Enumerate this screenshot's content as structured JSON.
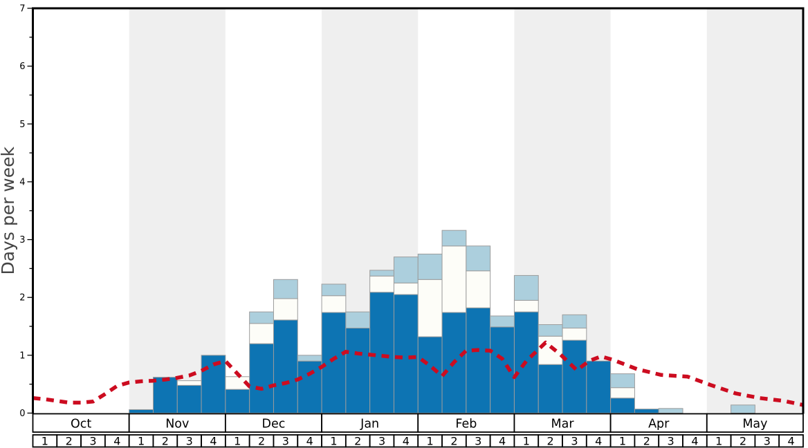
{
  "chart_data": {
    "type": "bar",
    "subtype": "stacked-bars-with-dashed-line-overlay",
    "title": "",
    "ylabel": "Days per week",
    "xlabel": "",
    "ylim": [
      0,
      7
    ],
    "y_major_ticks": [
      "0",
      "1",
      "2",
      "3",
      "4",
      "5",
      "6",
      "7"
    ],
    "y_minor_step": 0.5,
    "grid": "off",
    "legend": "none",
    "months": [
      "Oct",
      "Nov",
      "Dec",
      "Jan",
      "Feb",
      "Mar",
      "Apr",
      "May"
    ],
    "weeks_per_month": 4,
    "week_labels": [
      "1",
      "2",
      "3",
      "4"
    ],
    "shaded_months": [
      "Nov",
      "Jan",
      "Mar",
      "May"
    ],
    "categories": [
      "Oct-1",
      "Oct-2",
      "Oct-3",
      "Oct-4",
      "Nov-1",
      "Nov-2",
      "Nov-3",
      "Nov-4",
      "Dec-1",
      "Dec-2",
      "Dec-3",
      "Dec-4",
      "Jan-1",
      "Jan-2",
      "Jan-3",
      "Jan-4",
      "Feb-1",
      "Feb-2",
      "Feb-3",
      "Feb-4",
      "Mar-1",
      "Mar-2",
      "Mar-3",
      "Mar-4",
      "Apr-1",
      "Apr-2",
      "Apr-3",
      "Apr-4",
      "May-1",
      "May-2",
      "May-3",
      "May-4"
    ],
    "series": [
      {
        "name": "dark-blue-segment",
        "color": "#0d74b3",
        "values": [
          0,
          0,
          0,
          0,
          0.06,
          0.62,
          0.48,
          1.0,
          0.41,
          1.2,
          1.61,
          0.9,
          1.74,
          1.47,
          2.09,
          2.05,
          1.32,
          1.74,
          1.82,
          1.49,
          1.75,
          0.84,
          1.26,
          0.9,
          0.26,
          0.07,
          0,
          0,
          0,
          0,
          0,
          0
        ]
      },
      {
        "name": "white-segment",
        "color": "#fdfdf8",
        "values": [
          0,
          0,
          0,
          0,
          0,
          0,
          0.08,
          0,
          0.22,
          0.35,
          0.37,
          0,
          0.29,
          0,
          0.28,
          0.2,
          0.99,
          1.15,
          0.64,
          0,
          0.2,
          0.49,
          0.21,
          0,
          0.18,
          0,
          0,
          0,
          0,
          0,
          0,
          0
        ]
      },
      {
        "name": "light-blue-segment",
        "color": "#accfdd",
        "values": [
          0,
          0,
          0,
          0,
          0,
          0,
          0,
          0,
          0,
          0.2,
          0.33,
          0.1,
          0.2,
          0.28,
          0.1,
          0.45,
          0.44,
          0.27,
          0.43,
          0.19,
          0.43,
          0.2,
          0.23,
          0,
          0.24,
          0,
          0.08,
          0,
          0,
          0.14,
          0,
          0
        ]
      }
    ],
    "line": {
      "name": "red-dashed-trend-line",
      "color": "#cc0c20",
      "points": [
        [
          0,
          0.26
        ],
        [
          0.5,
          0.24
        ],
        [
          1,
          0.21
        ],
        [
          1.5,
          0.18
        ],
        [
          2,
          0.18
        ],
        [
          2.5,
          0.2
        ],
        [
          3,
          0.33
        ],
        [
          3.5,
          0.47
        ],
        [
          4,
          0.53
        ],
        [
          4.5,
          0.55
        ],
        [
          5,
          0.56
        ],
        [
          5.5,
          0.58
        ],
        [
          6,
          0.61
        ],
        [
          6.5,
          0.65
        ],
        [
          7,
          0.73
        ],
        [
          7.5,
          0.84
        ],
        [
          8,
          0.9
        ],
        [
          8.5,
          0.68
        ],
        [
          9,
          0.46
        ],
        [
          9.5,
          0.42
        ],
        [
          10,
          0.48
        ],
        [
          10.5,
          0.52
        ],
        [
          11,
          0.58
        ],
        [
          11.5,
          0.68
        ],
        [
          12,
          0.8
        ],
        [
          12.5,
          0.94
        ],
        [
          13,
          1.06
        ],
        [
          13.5,
          1.03
        ],
        [
          14,
          1.01
        ],
        [
          14.5,
          0.99
        ],
        [
          15,
          0.97
        ],
        [
          15.5,
          0.96
        ],
        [
          16,
          0.97
        ],
        [
          16.5,
          0.82
        ],
        [
          17,
          0.64
        ],
        [
          17.5,
          0.88
        ],
        [
          18,
          1.08
        ],
        [
          18.5,
          1.09
        ],
        [
          19,
          1.08
        ],
        [
          19.5,
          0.94
        ],
        [
          20,
          0.62
        ],
        [
          20.5,
          0.9
        ],
        [
          21.3,
          1.22
        ],
        [
          21.9,
          1.02
        ],
        [
          22.6,
          0.74
        ],
        [
          23.1,
          0.9
        ],
        [
          23.6,
          0.98
        ],
        [
          24.1,
          0.92
        ],
        [
          24.6,
          0.84
        ],
        [
          25.1,
          0.76
        ],
        [
          26.1,
          0.66
        ],
        [
          27.2,
          0.63
        ],
        [
          28.2,
          0.48
        ],
        [
          29.2,
          0.34
        ],
        [
          30.2,
          0.26
        ],
        [
          31.2,
          0.21
        ],
        [
          32,
          0.14
        ]
      ]
    },
    "colors": {
      "band_gray": "#efefef",
      "bar_border": "#9c9c9c",
      "axis": "#000000",
      "tick_label": "#000000",
      "ylabel_color": "#444444",
      "cell_fill": "#ffffff",
      "cell_border": "#000000",
      "background": "#ffffff"
    }
  }
}
